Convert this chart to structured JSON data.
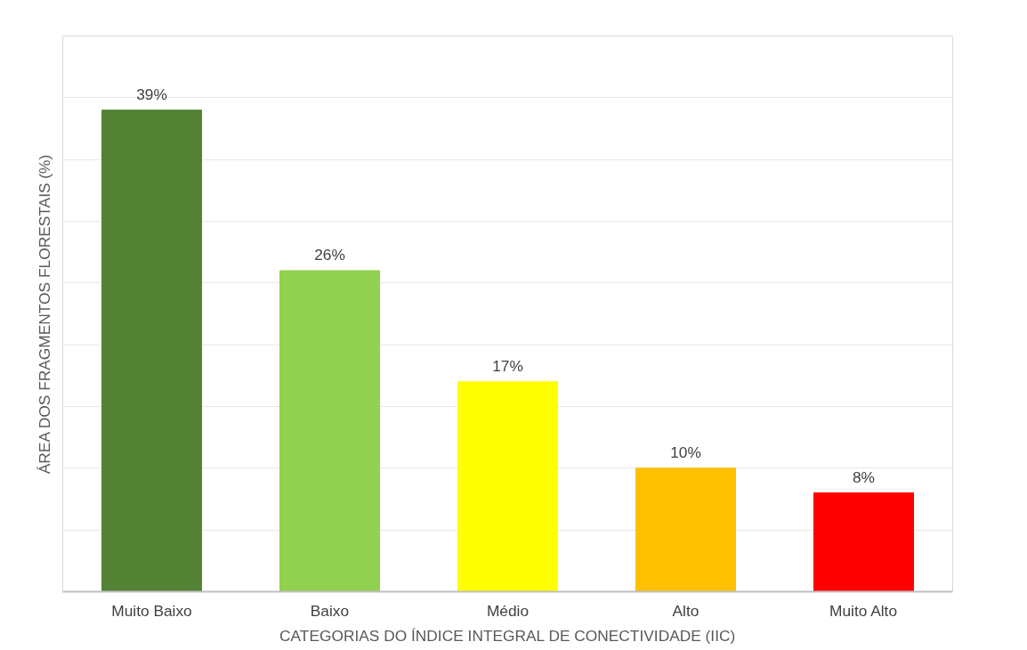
{
  "chart_data": {
    "type": "bar",
    "xlabel": "CATEGORIAS DO ÍNDICE INTEGRAL DE CONECTIVIDADE (IIC)",
    "ylabel": "ÁREA DOS FRAGMENTOS FLORESTAIS (%)",
    "categories": [
      "Muito Baixo",
      "Baixo",
      "Médio",
      "Alto",
      "Muito Alto"
    ],
    "values": [
      39,
      26,
      17,
      10,
      8
    ],
    "value_labels": [
      "39%",
      "26%",
      "17%",
      "10%",
      "8%"
    ],
    "colors": [
      "#548235",
      "#92d050",
      "#ffff00",
      "#ffc000",
      "#ff0000"
    ],
    "ylim": [
      0,
      45
    ],
    "yticks": [
      {
        "value": 0,
        "label": null
      },
      {
        "value": 5,
        "label": null
      },
      {
        "value": 10,
        "label": null
      },
      {
        "value": 15,
        "label": null
      },
      {
        "value": 20,
        "label": null
      },
      {
        "value": 25,
        "label": null
      },
      {
        "value": 30,
        "label": null
      },
      {
        "value": 35,
        "label": null
      },
      {
        "value": 40,
        "label": null
      },
      {
        "value": 45,
        "label": null
      }
    ],
    "tick_labels": "x",
    "grid": "y"
  }
}
